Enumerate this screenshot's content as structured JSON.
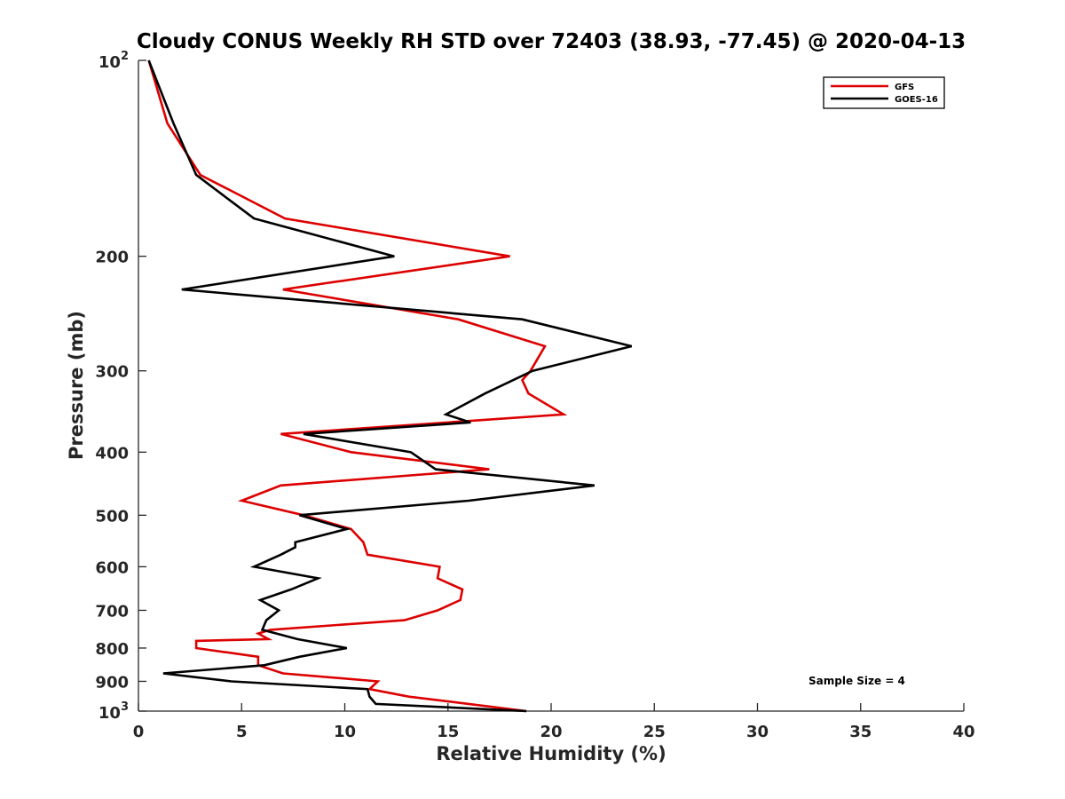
{
  "chart_data": {
    "type": "line",
    "title": "Cloudy CONUS Weekly RH STD over 72403 (38.93, -77.45) @ 2020-04-13",
    "xlabel": "Relative Humidity (%)",
    "ylabel": "Pressure (mb)",
    "xlim": [
      0,
      40
    ],
    "ylim": [
      100,
      1000
    ],
    "yscale": "log",
    "yreversed": true,
    "grid": false,
    "x_ticks": [
      0,
      5,
      10,
      15,
      20,
      25,
      30,
      35,
      40
    ],
    "y_ticks": [
      {
        "value": 100,
        "base": "10",
        "exp": "2"
      },
      {
        "value": 200,
        "label": "200"
      },
      {
        "value": 300,
        "label": "300"
      },
      {
        "value": 400,
        "label": "400"
      },
      {
        "value": 500,
        "label": "500"
      },
      {
        "value": 600,
        "label": "600"
      },
      {
        "value": 700,
        "label": "700"
      },
      {
        "value": 800,
        "label": "800"
      },
      {
        "value": 900,
        "label": "900"
      },
      {
        "value": 1000,
        "base": "10",
        "exp": "3"
      }
    ],
    "legend_position": "top-right",
    "annotation": "Sample Size = 4",
    "series": [
      {
        "name": "GFS",
        "color": "#dd0000",
        "points": [
          [
            0.5,
            100
          ],
          [
            1.4,
            125
          ],
          [
            3.0,
            150
          ],
          [
            7.1,
            175
          ],
          [
            18.0,
            200
          ],
          [
            7.0,
            225
          ],
          [
            15.5,
            250
          ],
          [
            19.7,
            275
          ],
          [
            19.0,
            300
          ],
          [
            18.6,
            310
          ],
          [
            18.9,
            325
          ],
          [
            20.6,
            350
          ],
          [
            6.9,
            375
          ],
          [
            10.3,
            400
          ],
          [
            17.0,
            425
          ],
          [
            6.9,
            450
          ],
          [
            5.0,
            475
          ],
          [
            8.0,
            500
          ],
          [
            10.3,
            525
          ],
          [
            10.9,
            550
          ],
          [
            11.1,
            575
          ],
          [
            14.6,
            600
          ],
          [
            14.5,
            625
          ],
          [
            15.7,
            650
          ],
          [
            15.6,
            675
          ],
          [
            14.5,
            700
          ],
          [
            12.9,
            725
          ],
          [
            6.4,
            750
          ],
          [
            5.8,
            760
          ],
          [
            6.3,
            775
          ],
          [
            2.8,
            780
          ],
          [
            2.8,
            800
          ],
          [
            5.8,
            825
          ],
          [
            5.8,
            850
          ],
          [
            7.0,
            875
          ],
          [
            11.6,
            900
          ],
          [
            11.2,
            925
          ],
          [
            13.1,
            950
          ],
          [
            16.0,
            975
          ],
          [
            18.8,
            1000
          ]
        ]
      },
      {
        "name": "GOES-16",
        "color": "#000000",
        "points": [
          [
            0.5,
            100
          ],
          [
            1.7,
            125
          ],
          [
            2.8,
            150
          ],
          [
            5.6,
            175
          ],
          [
            12.4,
            200
          ],
          [
            2.1,
            225
          ],
          [
            18.6,
            250
          ],
          [
            23.9,
            275
          ],
          [
            19.1,
            300
          ],
          [
            16.8,
            325
          ],
          [
            14.9,
            350
          ],
          [
            16.1,
            360
          ],
          [
            8.0,
            375
          ],
          [
            13.2,
            400
          ],
          [
            14.4,
            425
          ],
          [
            22.1,
            450
          ],
          [
            16.0,
            475
          ],
          [
            7.8,
            500
          ],
          [
            10.1,
            525
          ],
          [
            7.6,
            550
          ],
          [
            7.6,
            560
          ],
          [
            6.9,
            575
          ],
          [
            5.6,
            600
          ],
          [
            8.7,
            625
          ],
          [
            7.4,
            650
          ],
          [
            5.9,
            675
          ],
          [
            6.8,
            700
          ],
          [
            6.2,
            725
          ],
          [
            6.0,
            750
          ],
          [
            7.7,
            775
          ],
          [
            10.1,
            800
          ],
          [
            7.8,
            825
          ],
          [
            6.1,
            850
          ],
          [
            1.2,
            875
          ],
          [
            4.5,
            900
          ],
          [
            11.1,
            925
          ],
          [
            11.2,
            950
          ],
          [
            11.5,
            975
          ],
          [
            18.8,
            1000
          ]
        ]
      }
    ]
  }
}
